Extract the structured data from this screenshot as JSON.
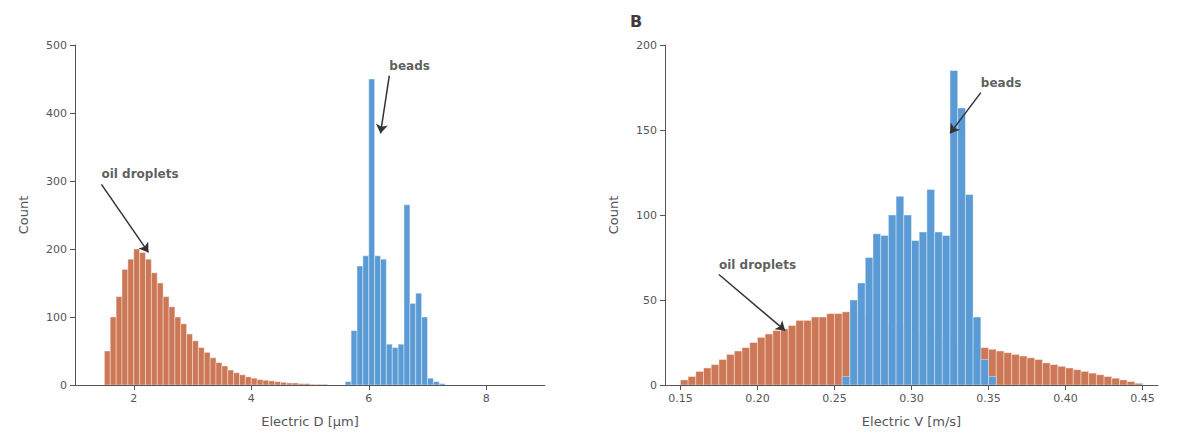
{
  "chart_data": [
    {
      "type": "histogram",
      "xlabel": "Electric D [μm]",
      "ylabel": "Count",
      "xlim": [
        1.0,
        9.0
      ],
      "ylim": [
        0,
        500
      ],
      "xticks": [
        2,
        4,
        6,
        8
      ],
      "yticks": [
        0,
        100,
        200,
        300,
        400,
        500
      ],
      "grid": false,
      "series": [
        {
          "color": "#CC7755",
          "bins": [
            1.5,
            1.6,
            1.7,
            1.8,
            1.9,
            2.0,
            2.1,
            2.2,
            2.3,
            2.4,
            2.5,
            2.6,
            2.7,
            2.8,
            2.9,
            3.0,
            3.1,
            3.2,
            3.3,
            3.4,
            3.5,
            3.6,
            3.7,
            3.8,
            3.9,
            4.0,
            4.1,
            4.2,
            4.3,
            4.4,
            4.5,
            4.6,
            4.7,
            4.8,
            4.9,
            5.0,
            5.1,
            5.2,
            5.3,
            5.4,
            5.5
          ],
          "values": [
            50,
            100,
            130,
            170,
            185,
            200,
            195,
            185,
            165,
            150,
            130,
            115,
            100,
            90,
            75,
            65,
            55,
            48,
            40,
            33,
            28,
            22,
            18,
            15,
            12,
            10,
            8,
            7,
            6,
            5,
            4,
            3,
            3,
            2,
            2,
            1,
            1,
            1,
            0,
            0
          ]
        },
        {
          "color": "#5B9BD5",
          "bins": [
            5.5,
            5.6,
            5.7,
            5.8,
            5.9,
            6.0,
            6.1,
            6.2,
            6.3,
            6.4,
            6.5,
            6.6,
            6.7,
            6.8,
            6.9,
            7.0,
            7.1,
            7.2,
            7.3
          ],
          "values": [
            0,
            5,
            80,
            175,
            190,
            450,
            190,
            185,
            60,
            55,
            60,
            265,
            120,
            135,
            100,
            10,
            5,
            2
          ]
        }
      ],
      "annotations": [
        {
          "text": "oil droplets",
          "xy": [
            2.25,
            195
          ],
          "xytext": [
            1.45,
            295
          ]
        },
        {
          "text": "beads",
          "xy": [
            6.2,
            370
          ],
          "xytext": [
            6.35,
            455
          ]
        }
      ]
    },
    {
      "type": "histogram",
      "title": "B",
      "xlabel": "Electric V [m/s]",
      "ylabel": "Count",
      "xlim": [
        0.14,
        0.46
      ],
      "ylim": [
        0,
        200
      ],
      "xticks": [
        0.15,
        {
          "value": 0.2,
          "label": "0.20"
        },
        0.25,
        {
          "value": 0.3,
          "label": "0.30"
        },
        0.35,
        {
          "value": 0.4,
          "label": "0.40"
        },
        0.45
      ],
      "yticks": [
        0,
        50,
        100,
        150,
        200
      ],
      "grid": false,
      "series": [
        {
          "color": "#CC7755",
          "bins": [
            0.15,
            0.155,
            0.16,
            0.165,
            0.17,
            0.175,
            0.18,
            0.185,
            0.19,
            0.195,
            0.2,
            0.205,
            0.21,
            0.215,
            0.22,
            0.225,
            0.23,
            0.235,
            0.24,
            0.245,
            0.25,
            0.255,
            0.26,
            0.265,
            0.27,
            0.275,
            0.28,
            0.285,
            0.29,
            0.295,
            0.3,
            0.305,
            0.31,
            0.315,
            0.32,
            0.325,
            0.33,
            0.335,
            0.34,
            0.345,
            0.35,
            0.355,
            0.36,
            0.365,
            0.37,
            0.375,
            0.38,
            0.385,
            0.39,
            0.395,
            0.4,
            0.405,
            0.41,
            0.415,
            0.42,
            0.425,
            0.43,
            0.435,
            0.44,
            0.445,
            0.45
          ],
          "values": [
            3,
            5,
            8,
            10,
            12,
            15,
            18,
            20,
            22,
            25,
            28,
            30,
            32,
            33,
            35,
            38,
            38,
            40,
            40,
            42,
            42,
            43,
            42,
            40,
            40,
            38,
            37,
            36,
            35,
            34,
            33,
            31,
            30,
            28,
            27,
            25,
            25,
            24,
            22,
            22,
            21,
            20,
            19,
            18,
            17,
            16,
            15,
            13,
            12,
            11,
            10,
            9,
            8,
            7,
            6,
            5,
            4,
            3,
            2,
            1
          ]
        },
        {
          "color": "#5B9BD5",
          "bins": [
            0.255,
            0.26,
            0.265,
            0.27,
            0.275,
            0.28,
            0.285,
            0.29,
            0.295,
            0.3,
            0.305,
            0.31,
            0.315,
            0.32,
            0.325,
            0.33,
            0.335,
            0.34,
            0.345,
            0.35,
            0.355
          ],
          "values": [
            5,
            50,
            60,
            75,
            89,
            88,
            100,
            111,
            100,
            85,
            90,
            115,
            90,
            88,
            185,
            163,
            112,
            40,
            15,
            5
          ]
        }
      ],
      "annotations": [
        {
          "text": "oil droplets",
          "xy": [
            0.218,
            32
          ],
          "xytext": [
            0.175,
            65
          ]
        },
        {
          "text": "beads",
          "xy": [
            0.325,
            148
          ],
          "xytext": [
            0.345,
            172
          ]
        }
      ]
    }
  ]
}
